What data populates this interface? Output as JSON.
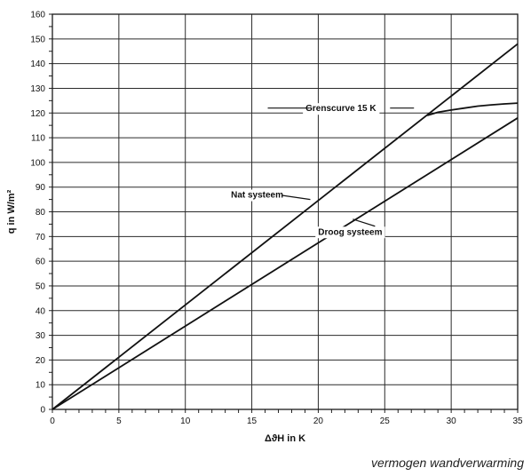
{
  "caption": "vermogen wandverwarming",
  "chart_data": {
    "type": "line",
    "xlabel": "ΔϑH in K",
    "ylabel": "q in W/m²",
    "xlim": [
      0,
      35
    ],
    "ylim": [
      0,
      160
    ],
    "xticks": [
      0,
      5,
      10,
      15,
      20,
      25,
      30,
      35
    ],
    "yticks": [
      0,
      10,
      20,
      30,
      40,
      50,
      60,
      70,
      80,
      90,
      100,
      110,
      120,
      130,
      140,
      150,
      160
    ],
    "x_minor_step": 1,
    "y_minor_step": 5,
    "grid": true,
    "series": [
      {
        "name": "Nat systeem",
        "x": [
          0,
          35
        ],
        "y": [
          0,
          148
        ]
      },
      {
        "name": "Droog systeem",
        "x": [
          0,
          35
        ],
        "y": [
          0,
          118
        ]
      },
      {
        "name": "Grenscurve 15 K",
        "x": [
          28.2,
          29,
          30,
          31,
          32,
          33,
          34,
          35
        ],
        "y": [
          119,
          120.3,
          121.2,
          122,
          122.8,
          123.3,
          123.7,
          124
        ]
      }
    ],
    "annotations": [
      {
        "text": "Grenscurve 15 K",
        "x": 21.7,
        "y": 122,
        "leader_x": [
          16.2,
          19.3,
          25.4,
          27.2
        ]
      },
      {
        "text": "Nat systeem",
        "x": 15.4,
        "y": 87,
        "leader_to": [
          19.4,
          85
        ]
      },
      {
        "text": "Droog systeem",
        "x": 22.4,
        "y": 72,
        "leader_to": [
          22.6,
          77
        ]
      }
    ]
  }
}
